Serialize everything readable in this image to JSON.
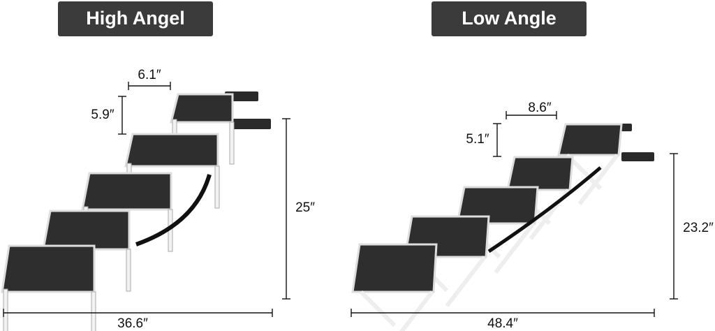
{
  "titles": {
    "left": "High Angel",
    "right": "Low Angle"
  },
  "left": {
    "step_width": "6.1″",
    "step_rise": "5.9″",
    "height": "25″",
    "length": "36.6″"
  },
  "right": {
    "step_width": "8.6″",
    "step_rise": "5.1″",
    "height": "23.2″",
    "length": "48.4″"
  }
}
